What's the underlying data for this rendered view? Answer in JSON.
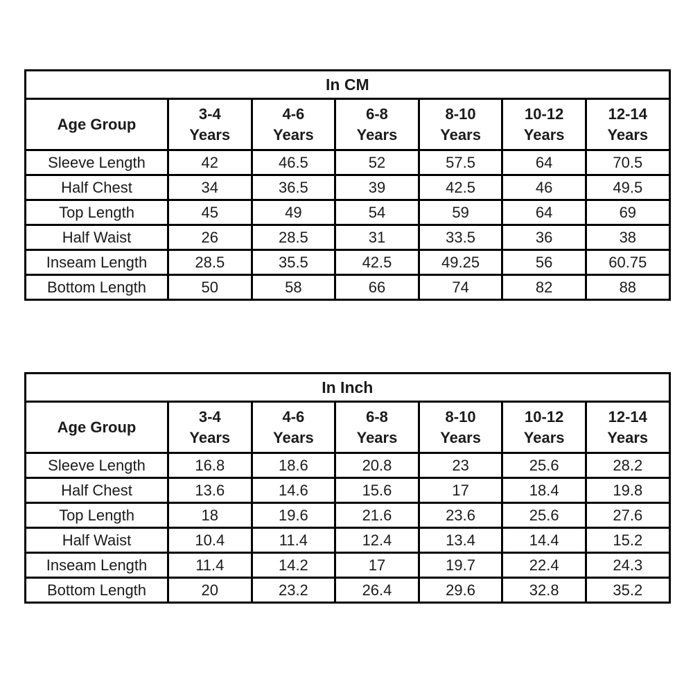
{
  "tables": {
    "cm": {
      "title": "In CM",
      "corner_header": "Age Group",
      "age_groups": [
        {
          "range": "3-4",
          "suffix": "Years"
        },
        {
          "range": "4-6",
          "suffix": "Years"
        },
        {
          "range": "6-8",
          "suffix": "Years"
        },
        {
          "range": "8-10",
          "suffix": "Years"
        },
        {
          "range": "10-12",
          "suffix": "Years"
        },
        {
          "range": "12-14",
          "suffix": "Years"
        }
      ],
      "rows": [
        {
          "label": "Sleeve Length",
          "values": [
            "42",
            "46.5",
            "52",
            "57.5",
            "64",
            "70.5"
          ]
        },
        {
          "label": "Half Chest",
          "values": [
            "34",
            "36.5",
            "39",
            "42.5",
            "46",
            "49.5"
          ]
        },
        {
          "label": "Top Length",
          "values": [
            "45",
            "49",
            "54",
            "59",
            "64",
            "69"
          ]
        },
        {
          "label": "Half Waist",
          "values": [
            "26",
            "28.5",
            "31",
            "33.5",
            "36",
            "38"
          ]
        },
        {
          "label": "Inseam Length",
          "values": [
            "28.5",
            "35.5",
            "42.5",
            "49.25",
            "56",
            "60.75"
          ]
        },
        {
          "label": "Bottom Length",
          "values": [
            "50",
            "58",
            "66",
            "74",
            "82",
            "88"
          ]
        }
      ]
    },
    "inch": {
      "title": "In Inch",
      "corner_header": "Age Group",
      "age_groups": [
        {
          "range": "3-4",
          "suffix": "Years"
        },
        {
          "range": "4-6",
          "suffix": "Years"
        },
        {
          "range": "6-8",
          "suffix": "Years"
        },
        {
          "range": "8-10",
          "suffix": "Years"
        },
        {
          "range": "10-12",
          "suffix": "Years"
        },
        {
          "range": "12-14",
          "suffix": "Years"
        }
      ],
      "rows": [
        {
          "label": "Sleeve Length",
          "values": [
            "16.8",
            "18.6",
            "20.8",
            "23",
            "25.6",
            "28.2"
          ]
        },
        {
          "label": "Half Chest",
          "values": [
            "13.6",
            "14.6",
            "15.6",
            "17",
            "18.4",
            "19.8"
          ]
        },
        {
          "label": "Top Length",
          "values": [
            "18",
            "19.6",
            "21.6",
            "23.6",
            "25.6",
            "27.6"
          ]
        },
        {
          "label": "Half Waist",
          "values": [
            "10.4",
            "11.4",
            "12.4",
            "13.4",
            "14.4",
            "15.2"
          ]
        },
        {
          "label": "Inseam Length",
          "values": [
            "11.4",
            "14.2",
            "17",
            "19.7",
            "22.4",
            "24.3"
          ]
        },
        {
          "label": "Bottom Length",
          "values": [
            "20",
            "23.2",
            "26.4",
            "29.6",
            "32.8",
            "35.2"
          ]
        }
      ]
    }
  },
  "colors": {
    "border": "#000000",
    "text": "#1b1b1b",
    "background": "#ffffff"
  }
}
